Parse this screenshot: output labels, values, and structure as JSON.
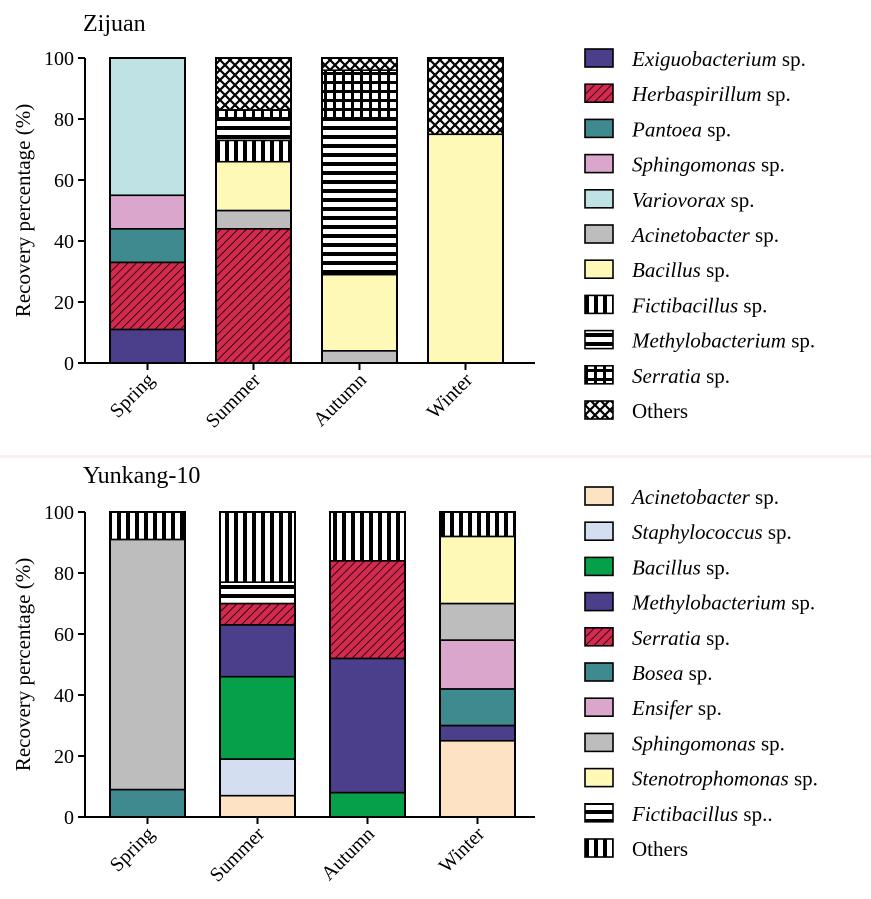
{
  "chart_data": [
    {
      "type": "bar",
      "stacked": true,
      "title": "Zijuan",
      "ylabel": "Recovery percentage (%)",
      "ylim": [
        0,
        100
      ],
      "yticks": [
        0,
        20,
        40,
        60,
        80,
        100
      ],
      "categories": [
        "Spring",
        "Summer",
        "Autumn",
        "Winter"
      ],
      "legend_position": "right",
      "series": [
        {
          "name": "Exiguobacterium",
          "suffix": " sp.",
          "values": [
            11,
            0,
            0,
            0
          ],
          "fill": "#4b3f8c",
          "pattern": "solid"
        },
        {
          "name": "Herbaspirillum",
          "suffix": " sp.",
          "values": [
            22,
            44,
            0,
            0
          ],
          "fill": "#d42a50",
          "pattern": "diagonal"
        },
        {
          "name": "Pantoea",
          "suffix": " sp.",
          "values": [
            11,
            0,
            0,
            0
          ],
          "fill": "#3f8a8e",
          "pattern": "solid"
        },
        {
          "name": "Sphingomonas",
          "suffix": " sp.",
          "values": [
            11,
            0,
            0,
            0
          ],
          "fill": "#dba6cc",
          "pattern": "solid"
        },
        {
          "name": "Variovorax",
          "suffix": " sp.",
          "values": [
            45,
            0,
            0,
            0
          ],
          "fill": "#bfe3e5",
          "pattern": "solid"
        },
        {
          "name": "Acinetobacter",
          "suffix": " sp.",
          "values": [
            0,
            6,
            4,
            0
          ],
          "fill": "#bdbdbd",
          "pattern": "solid"
        },
        {
          "name": "Bacillus",
          "suffix": " sp.",
          "values": [
            0,
            16,
            25,
            75
          ],
          "fill": "#fff9b8",
          "pattern": "solid"
        },
        {
          "name": "Fictibacillus",
          "suffix": " sp.",
          "values": [
            0,
            7,
            0,
            0
          ],
          "fill": "#ffffff",
          "pattern": "vertical"
        },
        {
          "name": "Methylobacterium",
          "suffix": " sp.",
          "values": [
            0,
            7,
            51,
            0
          ],
          "fill": "#ffffff",
          "pattern": "horizontal"
        },
        {
          "name": "Serratia",
          "suffix": " sp.",
          "values": [
            0,
            3,
            16,
            0
          ],
          "fill": "#ffffff",
          "pattern": "grid"
        },
        {
          "name": "Others",
          "suffix": "",
          "values": [
            0,
            17,
            4,
            25
          ],
          "fill": "#ffffff",
          "pattern": "cross"
        }
      ]
    },
    {
      "type": "bar",
      "stacked": true,
      "title": "Yunkang-10",
      "ylabel": "Recovery percentage (%)",
      "ylim": [
        0,
        100
      ],
      "yticks": [
        0,
        20,
        40,
        60,
        80,
        100
      ],
      "categories": [
        "Spring",
        "Summer",
        "Autumn",
        "Winter"
      ],
      "legend_position": "right",
      "series": [
        {
          "name": "Acinetobacter",
          "suffix": " sp.",
          "values": [
            0,
            7,
            0,
            25
          ],
          "fill": "#fde3c3",
          "pattern": "solid"
        },
        {
          "name": "Staphylococcus",
          "suffix": " sp.",
          "values": [
            0,
            12,
            0,
            0
          ],
          "fill": "#d3def0",
          "pattern": "solid"
        },
        {
          "name": "Bacillus",
          "suffix": " sp.",
          "values": [
            0,
            27,
            8,
            0
          ],
          "fill": "#07a04a",
          "pattern": "solid"
        },
        {
          "name": "Methylobacterium",
          "suffix": " sp.",
          "values": [
            0,
            17,
            44,
            5
          ],
          "fill": "#4b3f8c",
          "pattern": "solid"
        },
        {
          "name": "Serratia",
          "suffix": " sp.",
          "values": [
            0,
            7,
            32,
            0
          ],
          "fill": "#d42a50",
          "pattern": "diagonal"
        },
        {
          "name": "Bosea",
          "suffix": " sp.",
          "values": [
            9,
            0,
            0,
            12
          ],
          "fill": "#3f8a8e",
          "pattern": "solid"
        },
        {
          "name": "Ensifer",
          "suffix": " sp.",
          "values": [
            0,
            0,
            0,
            16
          ],
          "fill": "#dba6cc",
          "pattern": "solid"
        },
        {
          "name": "Sphingomonas",
          "suffix": " sp.",
          "values": [
            82,
            0,
            0,
            12
          ],
          "fill": "#bdbdbd",
          "pattern": "solid"
        },
        {
          "name": "Stenotrophomonas",
          "suffix": " sp.",
          "values": [
            0,
            0,
            0,
            22
          ],
          "fill": "#fff9b8",
          "pattern": "solid"
        },
        {
          "name": "Fictibacillus",
          "suffix": " sp..",
          "values": [
            0,
            7,
            0,
            0
          ],
          "fill": "#ffffff",
          "pattern": "horizontal"
        },
        {
          "name": "Others",
          "suffix": "",
          "values": [
            9,
            23,
            16,
            8
          ],
          "fill": "#ffffff",
          "pattern": "vertical"
        }
      ]
    }
  ]
}
